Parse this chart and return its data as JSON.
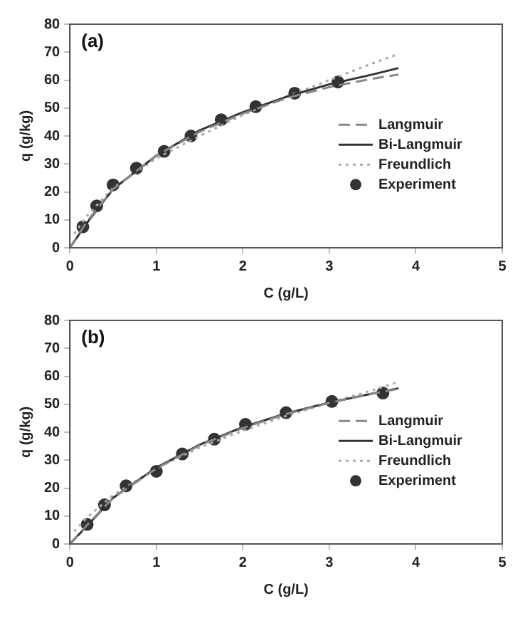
{
  "chart_data": [
    {
      "type": "line",
      "title": "(a)",
      "xlabel": "C (g/L)",
      "ylabel": "q (g/kg)",
      "xlim": [
        0,
        5
      ],
      "xticks": [
        0,
        1,
        2,
        3,
        4,
        5
      ],
      "ylim": [
        0,
        80
      ],
      "yticks": [
        0,
        10,
        20,
        30,
        40,
        50,
        60,
        70,
        80
      ],
      "grid": false,
      "legend": "right",
      "series": [
        {
          "name": "Langmuir",
          "color": "#888888",
          "line_style": "dashed",
          "marker": "none",
          "x": [
            0,
            0.2,
            0.5,
            1,
            1.5,
            2,
            2.5,
            3,
            3.5,
            3.8
          ],
          "values": [
            0,
            9.5,
            21,
            33,
            41.5,
            48,
            53.5,
            57.5,
            60.5,
            62
          ]
        },
        {
          "name": "Bi-Langmuir",
          "color": "#333333",
          "line_style": "solid",
          "marker": "none",
          "x": [
            0,
            0.2,
            0.5,
            1,
            1.5,
            2,
            2.5,
            3,
            3.5,
            3.8
          ],
          "values": [
            0,
            9,
            21,
            33,
            42,
            48.5,
            54,
            58.5,
            62,
            64.3
          ]
        },
        {
          "name": "Freundlich",
          "color": "#aaaaaa",
          "line_style": "dotted",
          "marker": "none",
          "x": [
            0.05,
            0.2,
            0.5,
            1,
            1.5,
            2,
            2.5,
            3,
            3.5,
            3.8
          ],
          "values": [
            5,
            11.5,
            21.5,
            32,
            40,
            47.5,
            54,
            60,
            66,
            69.3
          ]
        },
        {
          "name": "Experiment",
          "type": "scatter",
          "color": "#333333",
          "marker": "circle",
          "x": [
            0.15,
            0.31,
            0.5,
            0.77,
            1.09,
            1.4,
            1.75,
            2.15,
            2.6,
            3.1
          ],
          "values": [
            7.5,
            15,
            22.5,
            28.5,
            34.5,
            40,
            45.8,
            50.5,
            55.3,
            59.3
          ]
        }
      ]
    },
    {
      "type": "line",
      "title": "(b)",
      "xlabel": "C (g/L)",
      "ylabel": "q (g/kg)",
      "xlim": [
        0,
        5
      ],
      "xticks": [
        0,
        1,
        2,
        3,
        4,
        5
      ],
      "ylim": [
        0,
        80
      ],
      "yticks": [
        0,
        10,
        20,
        30,
        40,
        50,
        60,
        70,
        80
      ],
      "grid": false,
      "legend": "right",
      "series": [
        {
          "name": "Langmuir",
          "color": "#888888",
          "line_style": "dashed",
          "marker": "none",
          "x": [
            0,
            0.2,
            0.5,
            1,
            1.5,
            2,
            2.5,
            3,
            3.5,
            3.8
          ],
          "values": [
            0,
            6.8,
            16.5,
            27,
            35.3,
            41.5,
            46.5,
            50.5,
            53.8,
            55.5
          ]
        },
        {
          "name": "Bi-Langmuir",
          "color": "#333333",
          "line_style": "solid",
          "marker": "none",
          "x": [
            0,
            0.2,
            0.5,
            1,
            1.5,
            2,
            2.5,
            3,
            3.5,
            3.8
          ],
          "values": [
            0,
            6.5,
            16.5,
            27.3,
            35.5,
            41.8,
            46.7,
            50.6,
            53.8,
            55.7
          ]
        },
        {
          "name": "Freundlich",
          "color": "#aaaaaa",
          "line_style": "dotted",
          "marker": "none",
          "x": [
            0.05,
            0.2,
            0.5,
            1,
            1.5,
            2,
            2.5,
            3,
            3.5,
            3.8
          ],
          "values": [
            4.5,
            9.5,
            17.5,
            27,
            34.5,
            40.5,
            45.8,
            50.5,
            55,
            58
          ]
        },
        {
          "name": "Experiment",
          "type": "scatter",
          "color": "#333333",
          "marker": "circle",
          "x": [
            0.2,
            0.4,
            0.65,
            1,
            1.3,
            1.67,
            2.03,
            2.5,
            3.03,
            3.62
          ],
          "values": [
            7,
            14,
            20.8,
            26,
            32.2,
            37.5,
            42.8,
            47,
            51,
            54
          ]
        }
      ]
    }
  ]
}
